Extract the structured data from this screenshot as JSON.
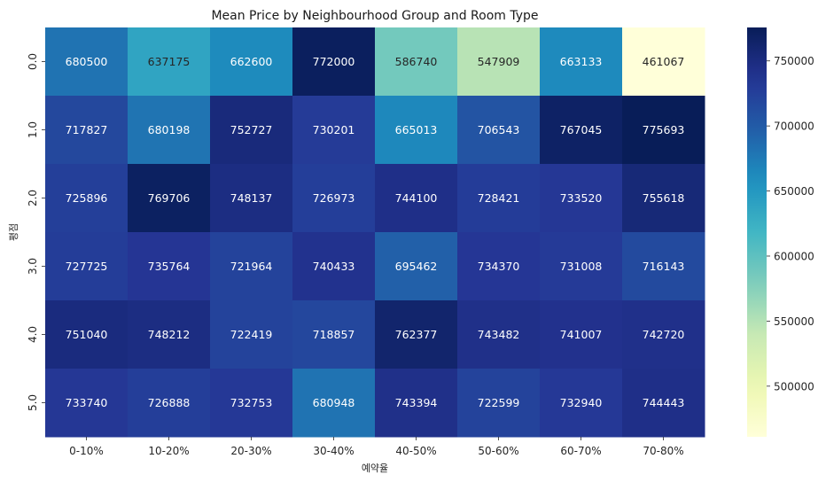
{
  "chart_data": {
    "type": "heatmap",
    "title": "Mean Price by Neighbourhood Group and Room Type",
    "xlabel": "예약율",
    "ylabel": "평점",
    "x_categories": [
      "0-10%",
      "10-20%",
      "20-30%",
      "30-40%",
      "40-50%",
      "50-60%",
      "60-70%",
      "70-80%"
    ],
    "y_categories": [
      "0.0",
      "1.0",
      "2.0",
      "3.0",
      "4.0",
      "5.0"
    ],
    "values": [
      [
        680500,
        637175,
        662600,
        772000,
        586740,
        547909,
        663133,
        461067
      ],
      [
        717827,
        680198,
        752727,
        730201,
        665013,
        706543,
        767045,
        775693
      ],
      [
        725896,
        769706,
        748137,
        726973,
        744100,
        728421,
        733520,
        755618
      ],
      [
        727725,
        735764,
        721964,
        740433,
        695462,
        734370,
        731008,
        716143
      ],
      [
        751040,
        748212,
        722419,
        718857,
        762377,
        743482,
        741007,
        742720
      ],
      [
        733740,
        726888,
        732753,
        680948,
        743394,
        722599,
        732940,
        744443
      ]
    ],
    "colorbar": {
      "colormap": "YlGnBu",
      "range": [
        461067,
        775693
      ],
      "ticks": [
        500000,
        550000,
        600000,
        650000,
        700000,
        750000
      ],
      "tick_labels": [
        "500000",
        "550000",
        "600000",
        "650000",
        "700000",
        "750000"
      ]
    },
    "annotations": "cell values shown",
    "grid": false
  }
}
